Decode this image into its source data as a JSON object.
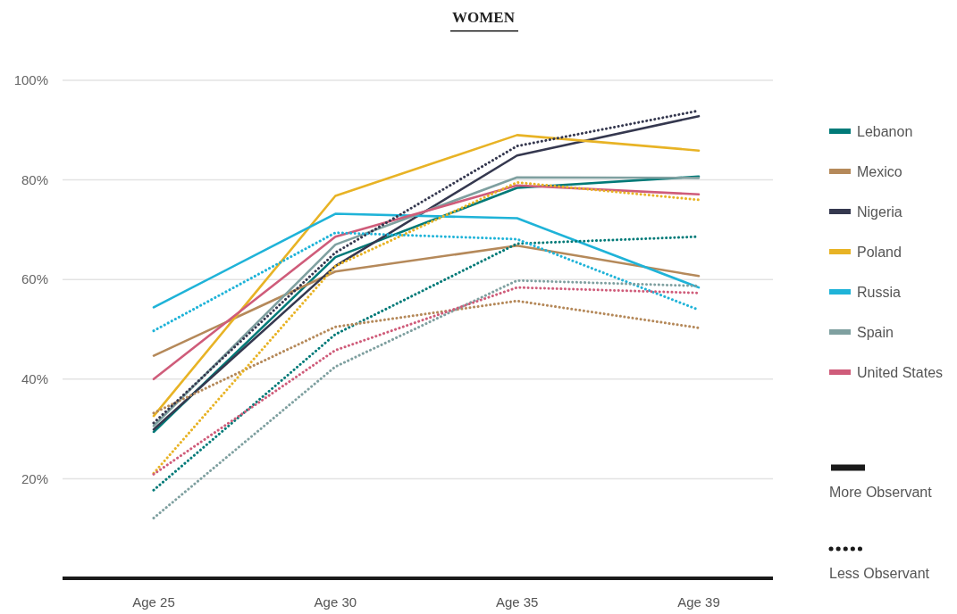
{
  "chart_data": {
    "type": "line",
    "title": "WOMEN",
    "categories": [
      "Age 25",
      "Age 30",
      "Age 35",
      "Age 39"
    ],
    "ylim": [
      0,
      100
    ],
    "yticks": [
      {
        "value": 20,
        "label": "20%"
      },
      {
        "value": 40,
        "label": "40%"
      },
      {
        "value": 60,
        "label": "60%"
      },
      {
        "value": 80,
        "label": "80%"
      },
      {
        "value": 100,
        "label": "100%"
      }
    ],
    "grid": "y",
    "legend": "right",
    "marker": "none",
    "annotations": [
      "More Observant",
      "Less Observant"
    ],
    "series": [
      {
        "name": "Lebanon",
        "color": "#007a78",
        "line_style": "solid",
        "values": [
          29.4,
          64.5,
          78.4,
          80.7
        ]
      },
      {
        "name": "Mexico",
        "color": "#b5895a",
        "line_style": "solid",
        "values": [
          44.7,
          61.6,
          66.8,
          60.7
        ]
      },
      {
        "name": "Nigeria",
        "color": "#35384f",
        "line_style": "solid",
        "values": [
          29.9,
          62.7,
          84.9,
          92.8
        ]
      },
      {
        "name": "Poland",
        "color": "#e8b325",
        "line_style": "solid",
        "values": [
          32.6,
          76.8,
          89.0,
          85.9
        ]
      },
      {
        "name": "Russia",
        "color": "#1fb3d8",
        "line_style": "solid",
        "values": [
          54.4,
          73.2,
          72.3,
          58.4
        ]
      },
      {
        "name": "Spain",
        "color": "#7fa0a0",
        "line_style": "solid",
        "values": [
          30.6,
          67.0,
          80.5,
          80.4
        ]
      },
      {
        "name": "United States",
        "color": "#cf5c7a",
        "line_style": "solid",
        "values": [
          40.0,
          68.6,
          78.9,
          77.1
        ]
      },
      {
        "color": "#007a78",
        "line_style": "dotted",
        "values": [
          17.7,
          49.0,
          67.2,
          68.6
        ]
      },
      {
        "color": "#b5895a",
        "line_style": "dotted",
        "values": [
          33.2,
          50.5,
          55.7,
          50.3
        ]
      },
      {
        "color": "#35384f",
        "line_style": "dotted",
        "values": [
          31.2,
          65.4,
          86.8,
          93.9
        ]
      },
      {
        "color": "#e8b325",
        "line_style": "dotted",
        "values": [
          21.1,
          62.7,
          79.5,
          76.0
        ]
      },
      {
        "color": "#1fb3d8",
        "line_style": "dotted",
        "values": [
          49.7,
          69.4,
          68.1,
          53.9
        ]
      },
      {
        "color": "#7fa0a0",
        "line_style": "dotted",
        "values": [
          12.1,
          42.5,
          59.8,
          58.7
        ]
      },
      {
        "color": "#cf5c7a",
        "line_style": "dotted",
        "values": [
          20.9,
          45.8,
          58.4,
          57.3
        ]
      }
    ]
  }
}
